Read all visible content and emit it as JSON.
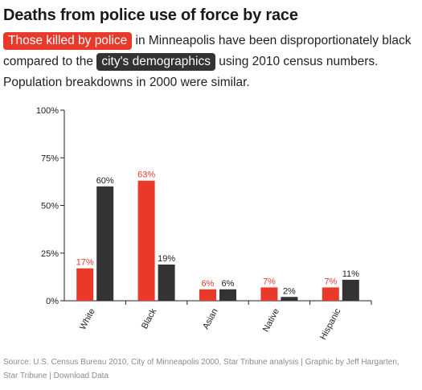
{
  "title": "Deaths from police use of force by race",
  "subtitle": {
    "killed_label": "Those killed by police",
    "text1": "in Minneapolis have been disproportionately black compared to the",
    "demo_label": "city's demographics",
    "text2": "using 2010 census numbers. Population breakdowns in 2000 were similar."
  },
  "source": "Source: U.S. Census Bureau 2010, City of Minneapolis 2000, Star Tribune analysis | Graphic by Jeff Hargarten, Star Tribune | Download Data",
  "colors": {
    "killed": "#e8392b",
    "population": "#333333"
  },
  "chart_data": {
    "type": "bar",
    "categories": [
      "White",
      "Black",
      "Asian",
      "Native",
      "Hispanic"
    ],
    "series": [
      {
        "name": "Those killed by police",
        "values": [
          17,
          63,
          6,
          7,
          7
        ]
      },
      {
        "name": "city's demographics",
        "values": [
          60,
          19,
          6,
          2,
          11
        ]
      }
    ],
    "yticks": [
      "0%",
      "25%",
      "50%",
      "75%",
      "100%"
    ],
    "ylim": [
      0,
      100
    ],
    "xlabel": "",
    "ylabel": "",
    "grid": false
  }
}
